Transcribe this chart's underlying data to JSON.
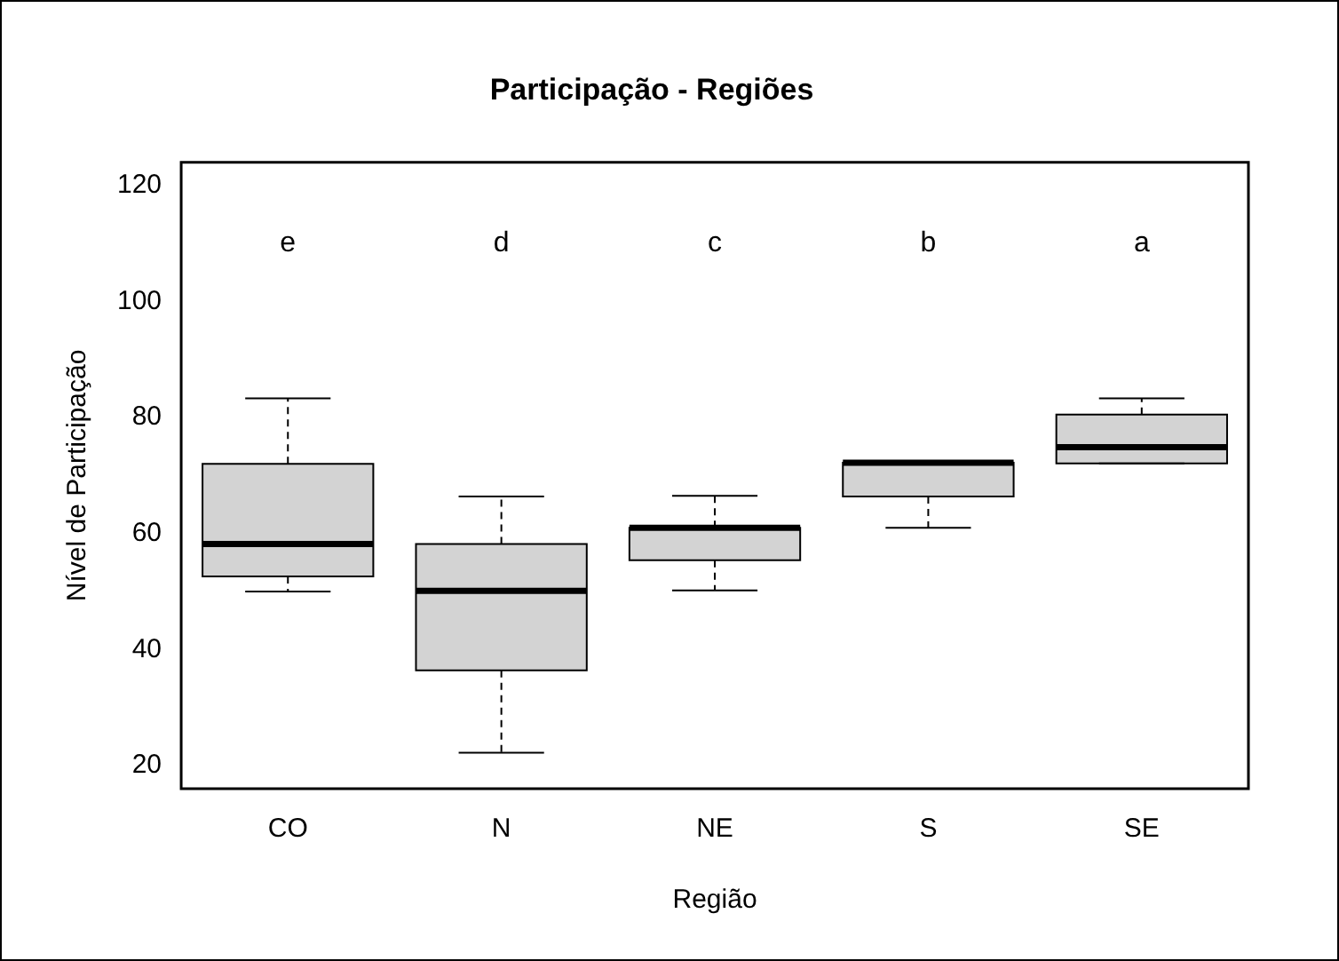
{
  "chart_data": {
    "type": "box",
    "title": "Participação - Regiões",
    "xlabel": "Região",
    "ylabel": "Nível de Participação",
    "categories": [
      "CO",
      "N",
      "NE",
      "S",
      "SE"
    ],
    "color": "#d3d3d3",
    "boxes": [
      {
        "low": 50,
        "q1": 52.6,
        "median": 58.2,
        "q3": 72,
        "high": 83.3
      },
      {
        "low": 22.2,
        "q1": 36.4,
        "median": 50.1,
        "q3": 58.2,
        "high": 66.4
      },
      {
        "low": 50.2,
        "q1": 55.4,
        "median": 61,
        "q3": 61,
        "high": 66.5
      },
      {
        "low": 61,
        "q1": 66.4,
        "median": 72.2,
        "q3": 72.2,
        "high": 72.2
      },
      {
        "low": 72.1,
        "q1": 72.1,
        "median": 74.9,
        "q3": 80.5,
        "high": 83.3
      }
    ],
    "ylim": [
      16,
      124
    ],
    "yticks": [
      20,
      40,
      60,
      80,
      100,
      120
    ],
    "grid": false,
    "legend": false,
    "annotations": [
      "e",
      "d",
      "c",
      "b",
      "a"
    ]
  }
}
